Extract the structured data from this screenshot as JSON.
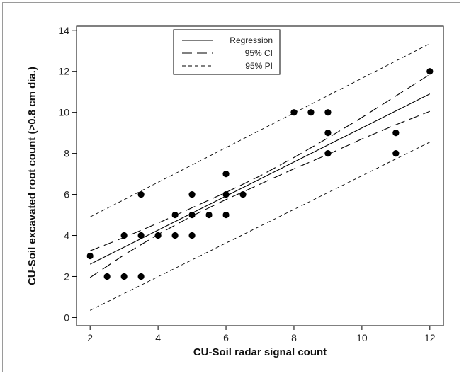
{
  "chart_data": {
    "type": "scatter",
    "xlabel": "CU-Soil radar signal count",
    "ylabel": "CU-Soil excavated root count (>0.8 cm dia.)",
    "xlim": [
      1.6,
      12.4
    ],
    "ylim": [
      -0.4,
      14.2
    ],
    "xticks": [
      2,
      4,
      6,
      8,
      10,
      12
    ],
    "yticks": [
      0,
      2,
      4,
      6,
      8,
      10,
      12,
      14
    ],
    "grid": false,
    "legend_position": "top-center",
    "points": [
      {
        "x": 2,
        "y": 3
      },
      {
        "x": 2.5,
        "y": 2
      },
      {
        "x": 3,
        "y": 2
      },
      {
        "x": 3,
        "y": 4
      },
      {
        "x": 3.5,
        "y": 2
      },
      {
        "x": 3.5,
        "y": 4
      },
      {
        "x": 3.5,
        "y": 6
      },
      {
        "x": 4,
        "y": 4
      },
      {
        "x": 4.5,
        "y": 4
      },
      {
        "x": 4.5,
        "y": 5
      },
      {
        "x": 5,
        "y": 4
      },
      {
        "x": 5,
        "y": 5
      },
      {
        "x": 5,
        "y": 6
      },
      {
        "x": 5.5,
        "y": 5
      },
      {
        "x": 6,
        "y": 5
      },
      {
        "x": 6,
        "y": 6
      },
      {
        "x": 6,
        "y": 7
      },
      {
        "x": 6.5,
        "y": 6
      },
      {
        "x": 8,
        "y": 10
      },
      {
        "x": 8.5,
        "y": 10
      },
      {
        "x": 9,
        "y": 8
      },
      {
        "x": 9,
        "y": 9
      },
      {
        "x": 9,
        "y": 10
      },
      {
        "x": 11,
        "y": 8
      },
      {
        "x": 11,
        "y": 9
      },
      {
        "x": 12,
        "y": 12
      }
    ],
    "series": [
      {
        "name": "Regression",
        "style": "solid",
        "x": [
          2,
          12
        ],
        "y": [
          2.6,
          10.9
        ]
      },
      {
        "name": "95% CI",
        "style": "long-dash",
        "x": [
          2,
          3,
          4,
          5,
          6,
          7,
          8,
          9,
          10,
          11,
          12
        ],
        "y": [
          3.25,
          3.9,
          4.6,
          5.35,
          6.1,
          6.9,
          7.8,
          8.75,
          9.75,
          10.8,
          11.85
        ]
      },
      {
        "name": "",
        "style": "long-dash",
        "x": [
          2,
          3,
          4,
          5,
          6,
          7,
          8,
          9,
          10,
          11,
          12
        ],
        "y": [
          1.95,
          3.05,
          4.05,
          4.95,
          5.75,
          6.5,
          7.25,
          7.95,
          8.7,
          9.4,
          10.05
        ]
      },
      {
        "name": "95% PI",
        "style": "short-dash",
        "x": [
          2,
          12
        ],
        "y": [
          4.9,
          13.35
        ]
      },
      {
        "name": "",
        "style": "short-dash",
        "x": [
          2,
          12
        ],
        "y": [
          0.35,
          8.55
        ]
      }
    ],
    "legend": [
      {
        "label": "Regression",
        "style": "solid"
      },
      {
        "label": "95% CI",
        "style": "long-dash"
      },
      {
        "label": "95% PI",
        "style": "short-dash"
      }
    ],
    "colors": {
      "points": "#000000",
      "lines": "#000000",
      "axis": "#000000"
    }
  }
}
